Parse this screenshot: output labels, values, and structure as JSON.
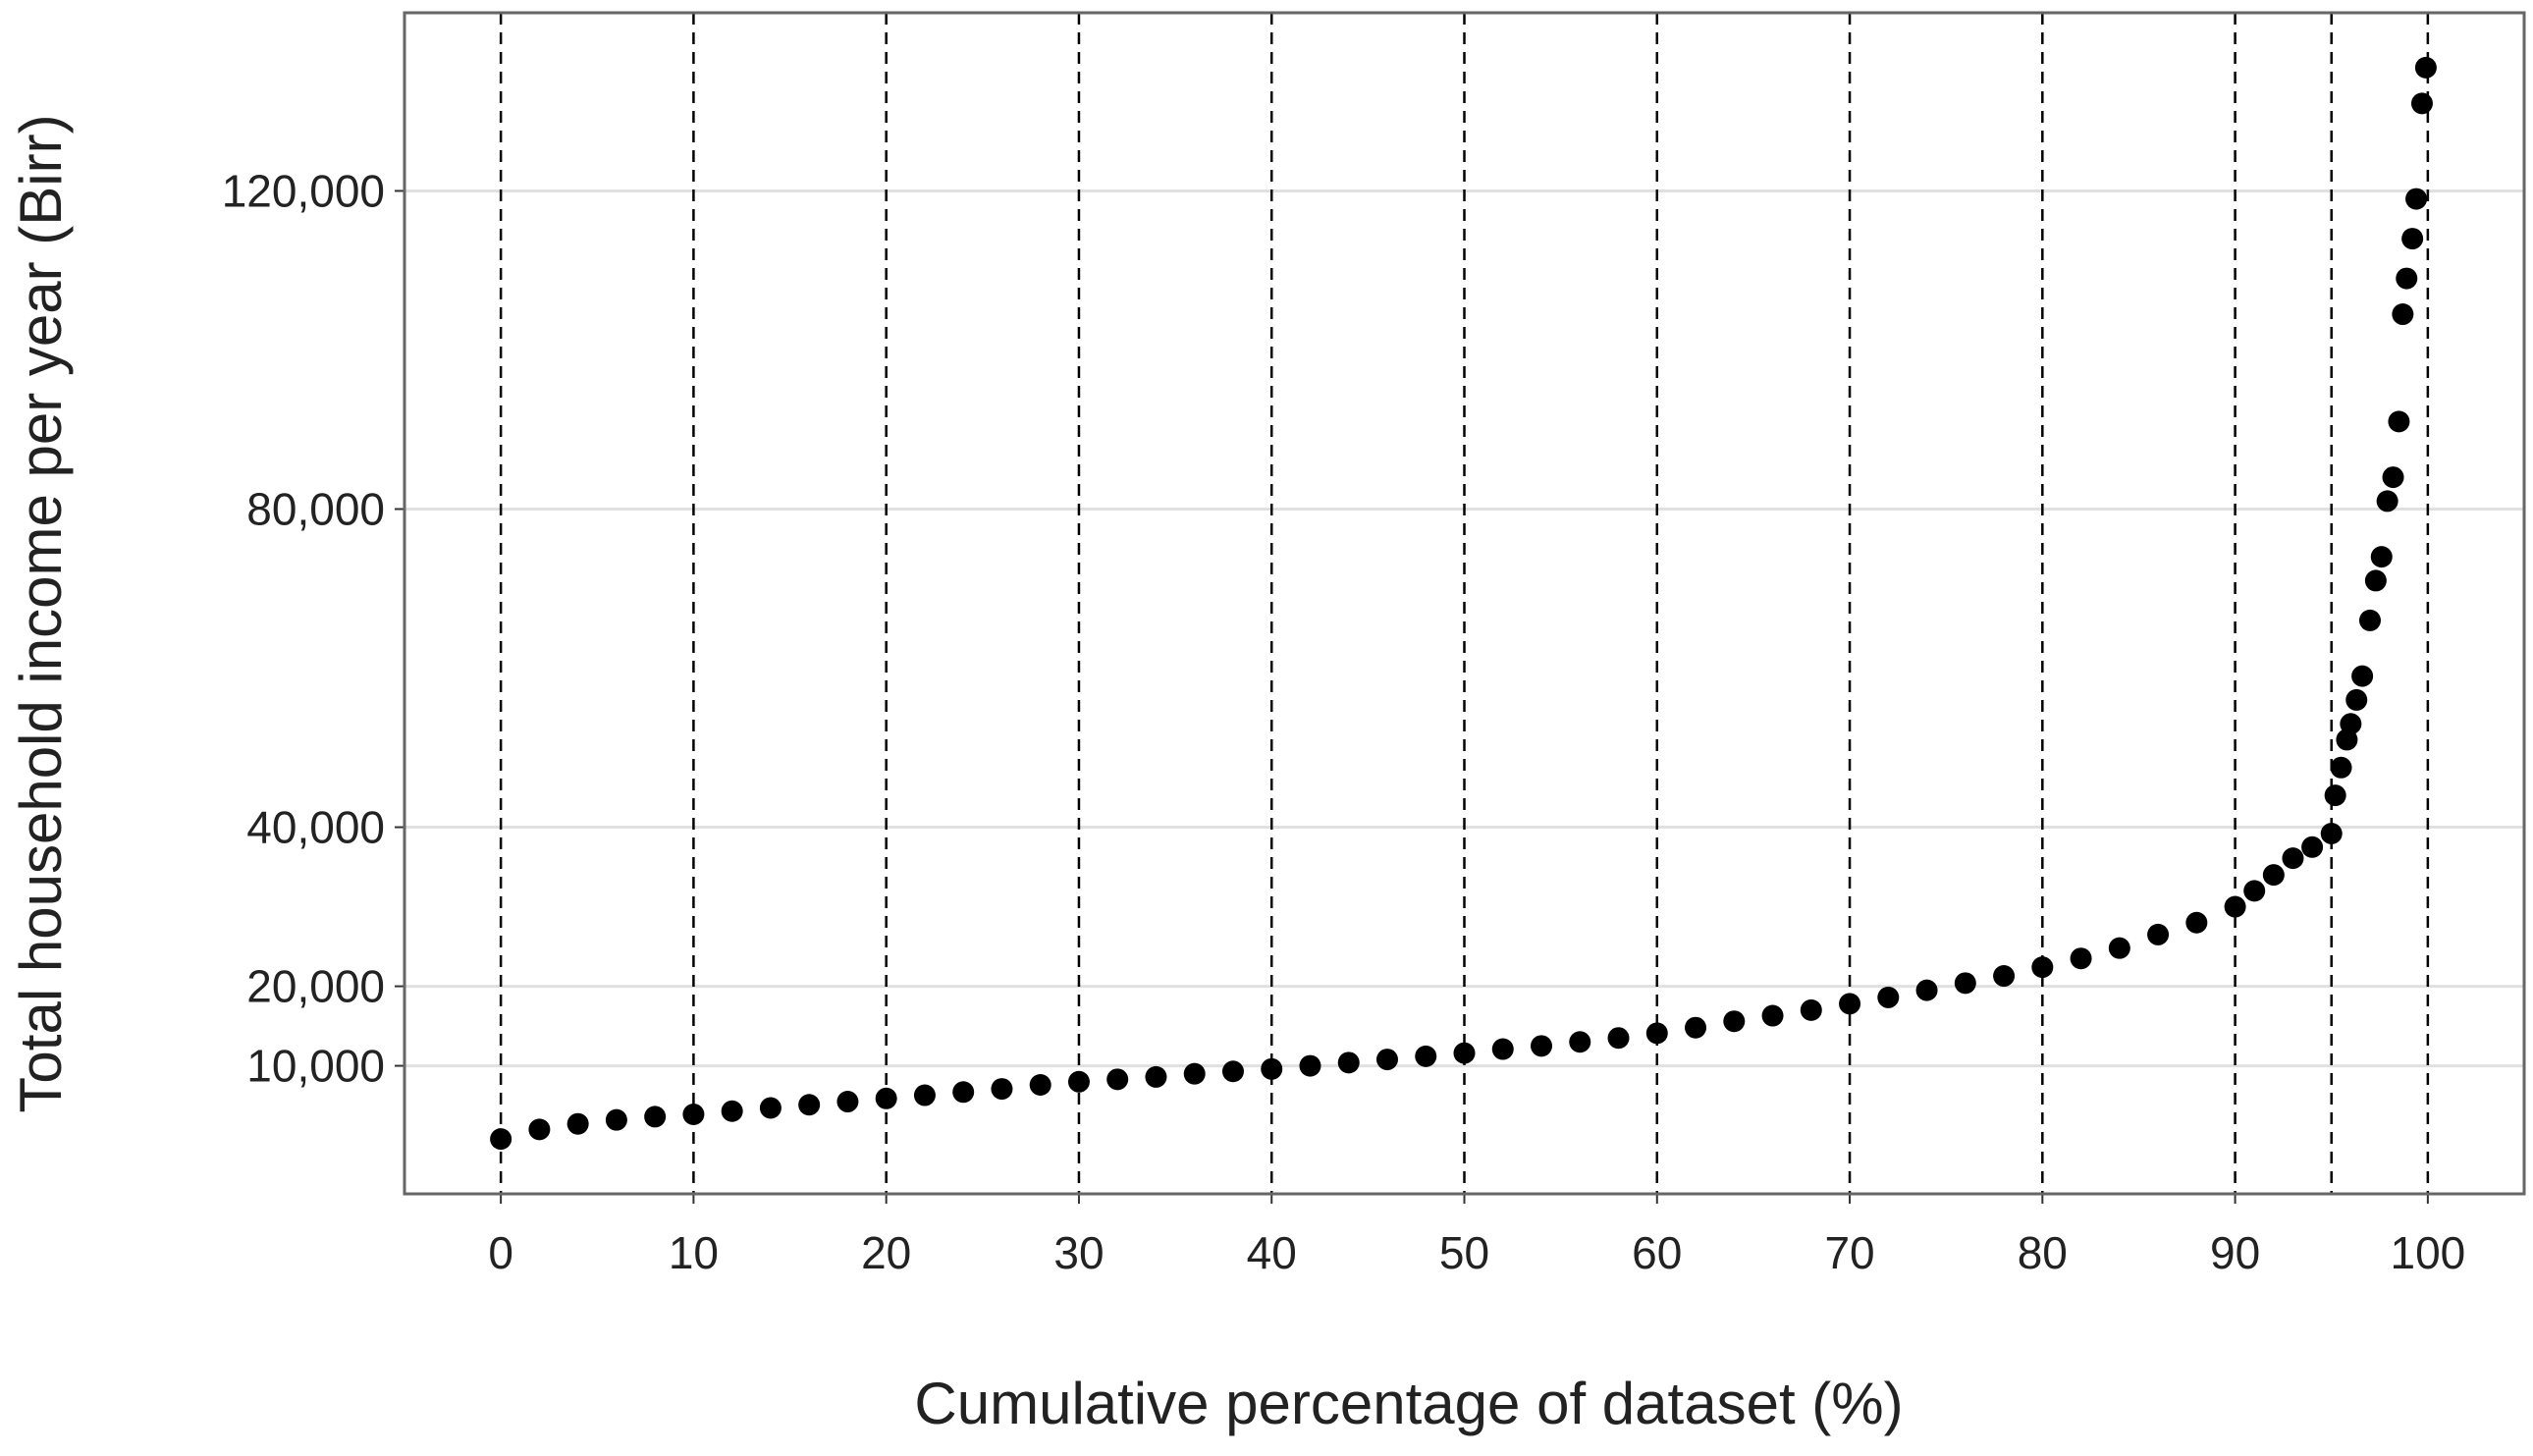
{
  "chart_data": {
    "type": "scatter",
    "x_label": "Cumulative percentage of dataset (%)",
    "y_label": "Total household income per year (Birr)",
    "x": [
      0,
      2,
      4,
      6,
      8,
      10,
      12,
      14,
      16,
      18,
      20,
      22,
      24,
      26,
      28,
      30,
      32,
      34,
      36,
      38,
      40,
      42,
      44,
      46,
      48,
      50,
      52,
      54,
      56,
      58,
      60,
      62,
      64,
      66,
      68,
      70,
      72,
      74,
      76,
      78,
      80,
      82,
      84,
      86,
      88,
      90,
      91,
      92,
      93,
      94,
      95,
      95.2,
      95.5,
      95.8,
      96,
      96.3,
      96.6,
      97,
      97.3,
      97.6,
      97.9,
      98.2,
      98.5,
      98.7,
      98.9,
      99.2,
      99.4,
      99.7,
      99.9
    ],
    "series": [
      {
        "color": "#000000",
        "values": [
          800,
          2000,
          2700,
          3200,
          3600,
          3900,
          4300,
          4700,
          5100,
          5500,
          5900,
          6300,
          6700,
          7100,
          7600,
          8000,
          8300,
          8600,
          9000,
          9300,
          9600,
          10000,
          10400,
          10800,
          11200,
          11600,
          12100,
          12500,
          13000,
          13500,
          14100,
          14800,
          15600,
          16300,
          17000,
          17800,
          18600,
          19500,
          20400,
          21300,
          22400,
          23500,
          24800,
          26500,
          28000,
          30000,
          32000,
          34000,
          36100,
          37500,
          39200,
          44000,
          47500,
          51000,
          53000,
          56000,
          59000,
          66000,
          71000,
          74000,
          81000,
          84000,
          91000,
          104500,
          109000,
          114000,
          119000,
          131000,
          135500
        ]
      }
    ],
    "xlim": [
      -5,
      105
    ],
    "ylim": [
      -6100,
      142400
    ],
    "xticks": [
      0,
      10,
      20,
      30,
      40,
      50,
      60,
      70,
      80,
      90,
      100
    ],
    "yticks": [
      {
        "value": 10000,
        "label": "10,000"
      },
      {
        "value": 20000,
        "label": "20,000"
      },
      {
        "value": 40000,
        "label": "40,000"
      },
      {
        "value": 80000,
        "label": "80,000"
      },
      {
        "value": 120000,
        "label": "120,000"
      }
    ],
    "dashed_vlines": [
      95
    ],
    "grid": true
  }
}
